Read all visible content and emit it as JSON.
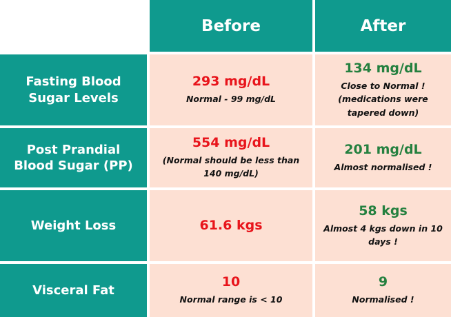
{
  "columns": {
    "before": "Before",
    "after": "After"
  },
  "rows": [
    {
      "label": "Fasting Blood Sugar Levels",
      "before_value": "293 mg/dL",
      "before_note": "Normal - 99 mg/dL",
      "after_value": "134 mg/dL",
      "after_note": "Close to Normal ! (medications were tapered down)"
    },
    {
      "label": "Post Prandial Blood Sugar (PP)",
      "before_value": "554 mg/dL",
      "before_note": "(Normal should be less than 140 mg/dL)",
      "after_value": "201 mg/dL",
      "after_note": "Almost normalised !"
    },
    {
      "label": "Weight Loss",
      "before_value": "61.6 kgs",
      "before_note": "",
      "after_value": "58 kgs",
      "after_note": "Almost 4 kgs down in 10 days !"
    },
    {
      "label": "Visceral Fat",
      "before_value": "10",
      "before_note": "Normal range is < 10",
      "after_value": "9",
      "after_note": "Normalised !"
    }
  ],
  "colors": {
    "header_bg": "#0f9a8e",
    "cell_bg": "#fde0d3",
    "before_value": "#e8141b",
    "after_value": "#24803f"
  }
}
